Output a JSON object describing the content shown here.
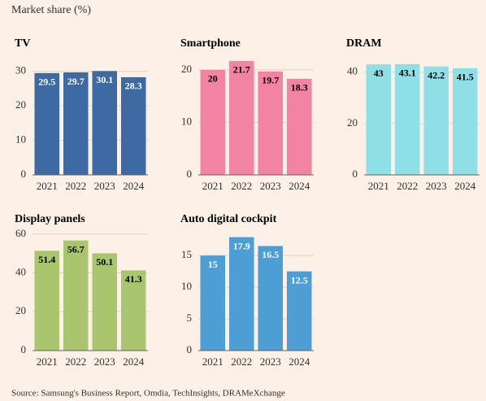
{
  "title": "Market share (%)",
  "source": "Source: Samsung's Business Report, Omdia, TechInsights, DRAMeXchange",
  "chart_data": [
    {
      "type": "bar",
      "title": "TV",
      "categories": [
        "2021",
        "2022",
        "2023",
        "2024"
      ],
      "values": [
        29.5,
        29.7,
        30.1,
        28.3
      ],
      "color": "#3d6aa3",
      "ylim": [
        0,
        33
      ],
      "yticks": [
        0,
        10,
        20,
        30
      ],
      "grid": true
    },
    {
      "type": "bar",
      "title": "Smartphone",
      "categories": [
        "2021",
        "2022",
        "2023",
        "2024"
      ],
      "values": [
        20,
        21.7,
        19.7,
        18.3
      ],
      "color": "#f283a3",
      "ylim": [
        0,
        22
      ],
      "yticks": [
        0,
        10,
        20
      ],
      "grid": true
    },
    {
      "type": "bar",
      "title": "DRAM",
      "categories": [
        "2021",
        "2022",
        "2023",
        "2024"
      ],
      "values": [
        43,
        43.1,
        42.2,
        41.5
      ],
      "color": "#8fe0e6",
      "ylim": [
        0,
        44
      ],
      "yticks": [
        0,
        20,
        40
      ],
      "grid": true
    },
    {
      "type": "bar",
      "title": "Display panels",
      "categories": [
        "2021",
        "2022",
        "2023",
        "2024"
      ],
      "values": [
        51.4,
        56.7,
        50.1,
        41.3
      ],
      "color": "#a9c56e",
      "ylim": [
        0,
        62
      ],
      "yticks": [
        0,
        20,
        40,
        60
      ],
      "grid": true
    },
    {
      "type": "bar",
      "title": "Auto digital cockpit",
      "categories": [
        "2021",
        "2022",
        "2023",
        "2024"
      ],
      "values": [
        15,
        17.9,
        16.5,
        12.5
      ],
      "color": "#4c9ed4",
      "ylim": [
        0,
        19
      ],
      "yticks": [
        0,
        5,
        10,
        15
      ],
      "grid": true
    }
  ]
}
